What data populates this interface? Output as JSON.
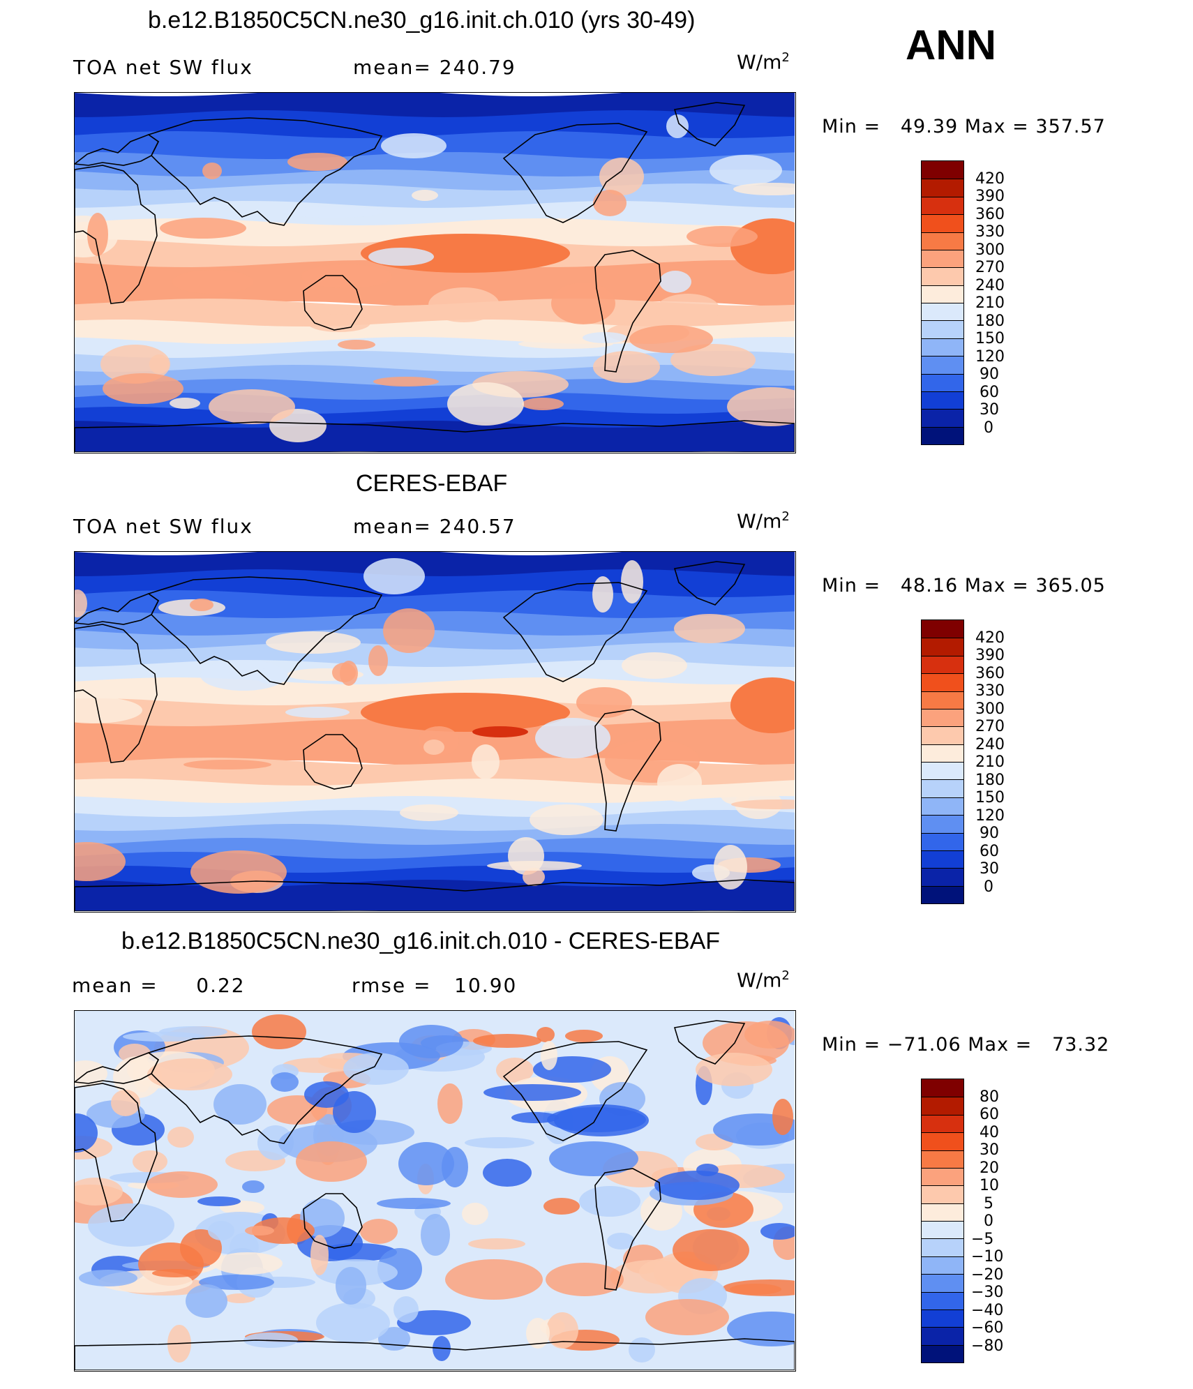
{
  "season": "ANN",
  "units_text": "W/m",
  "units_exp": "2",
  "panels": [
    {
      "title": "b.e12.B1850C5CN.ne30_g16.init.ch.010 (yrs 30-49)",
      "left_label": "TOA net SW flux",
      "right_label": "mean= 240.79",
      "min_text": "Min =",
      "min_value": "49.39",
      "max_text": "Max =",
      "max_value": "357.57"
    },
    {
      "title": "CERES-EBAF",
      "left_label": "TOA net SW flux",
      "right_label": "mean= 240.57",
      "min_text": "Min =",
      "min_value": "48.16",
      "max_text": "Max =",
      "max_value": "365.05"
    },
    {
      "title": "b.e12.B1850C5CN.ne30_g16.init.ch.010 - CERES-EBAF",
      "left_label": "mean =     0.22",
      "right_label": "rmse =   10.90",
      "min_text": "Min =",
      "min_value": "−71.06",
      "max_text": "Max =",
      "max_value": "73.32"
    }
  ],
  "colorbars": {
    "flux": {
      "labels": [
        "420",
        "390",
        "360",
        "330",
        "300",
        "270",
        "240",
        "210",
        "180",
        "150",
        "120",
        "90",
        "60",
        "30",
        "0"
      ],
      "colors": [
        "#7f0000",
        "#b31b00",
        "#d7300f",
        "#f0501c",
        "#f77a45",
        "#fba27d",
        "#fdc9ad",
        "#fdecdc",
        "#dbe9fb",
        "#b7d2fa",
        "#8fb5f7",
        "#5f8ff2",
        "#3266ea",
        "#123fd5",
        "#0a23a8",
        "#00127a"
      ]
    },
    "diff": {
      "labels": [
        "80",
        "60",
        "40",
        "30",
        "20",
        "10",
        "5",
        "0",
        "−5",
        "−10",
        "−20",
        "−30",
        "−40",
        "−60",
        "−80"
      ],
      "colors": [
        "#7f0000",
        "#b31b00",
        "#d7300f",
        "#f0501c",
        "#f77a45",
        "#fba27d",
        "#fdc9ad",
        "#fdecdc",
        "#dbe9fb",
        "#b7d2fa",
        "#8fb5f7",
        "#5f8ff2",
        "#3266ea",
        "#123fd5",
        "#0a23a8",
        "#00127a"
      ]
    }
  }
}
